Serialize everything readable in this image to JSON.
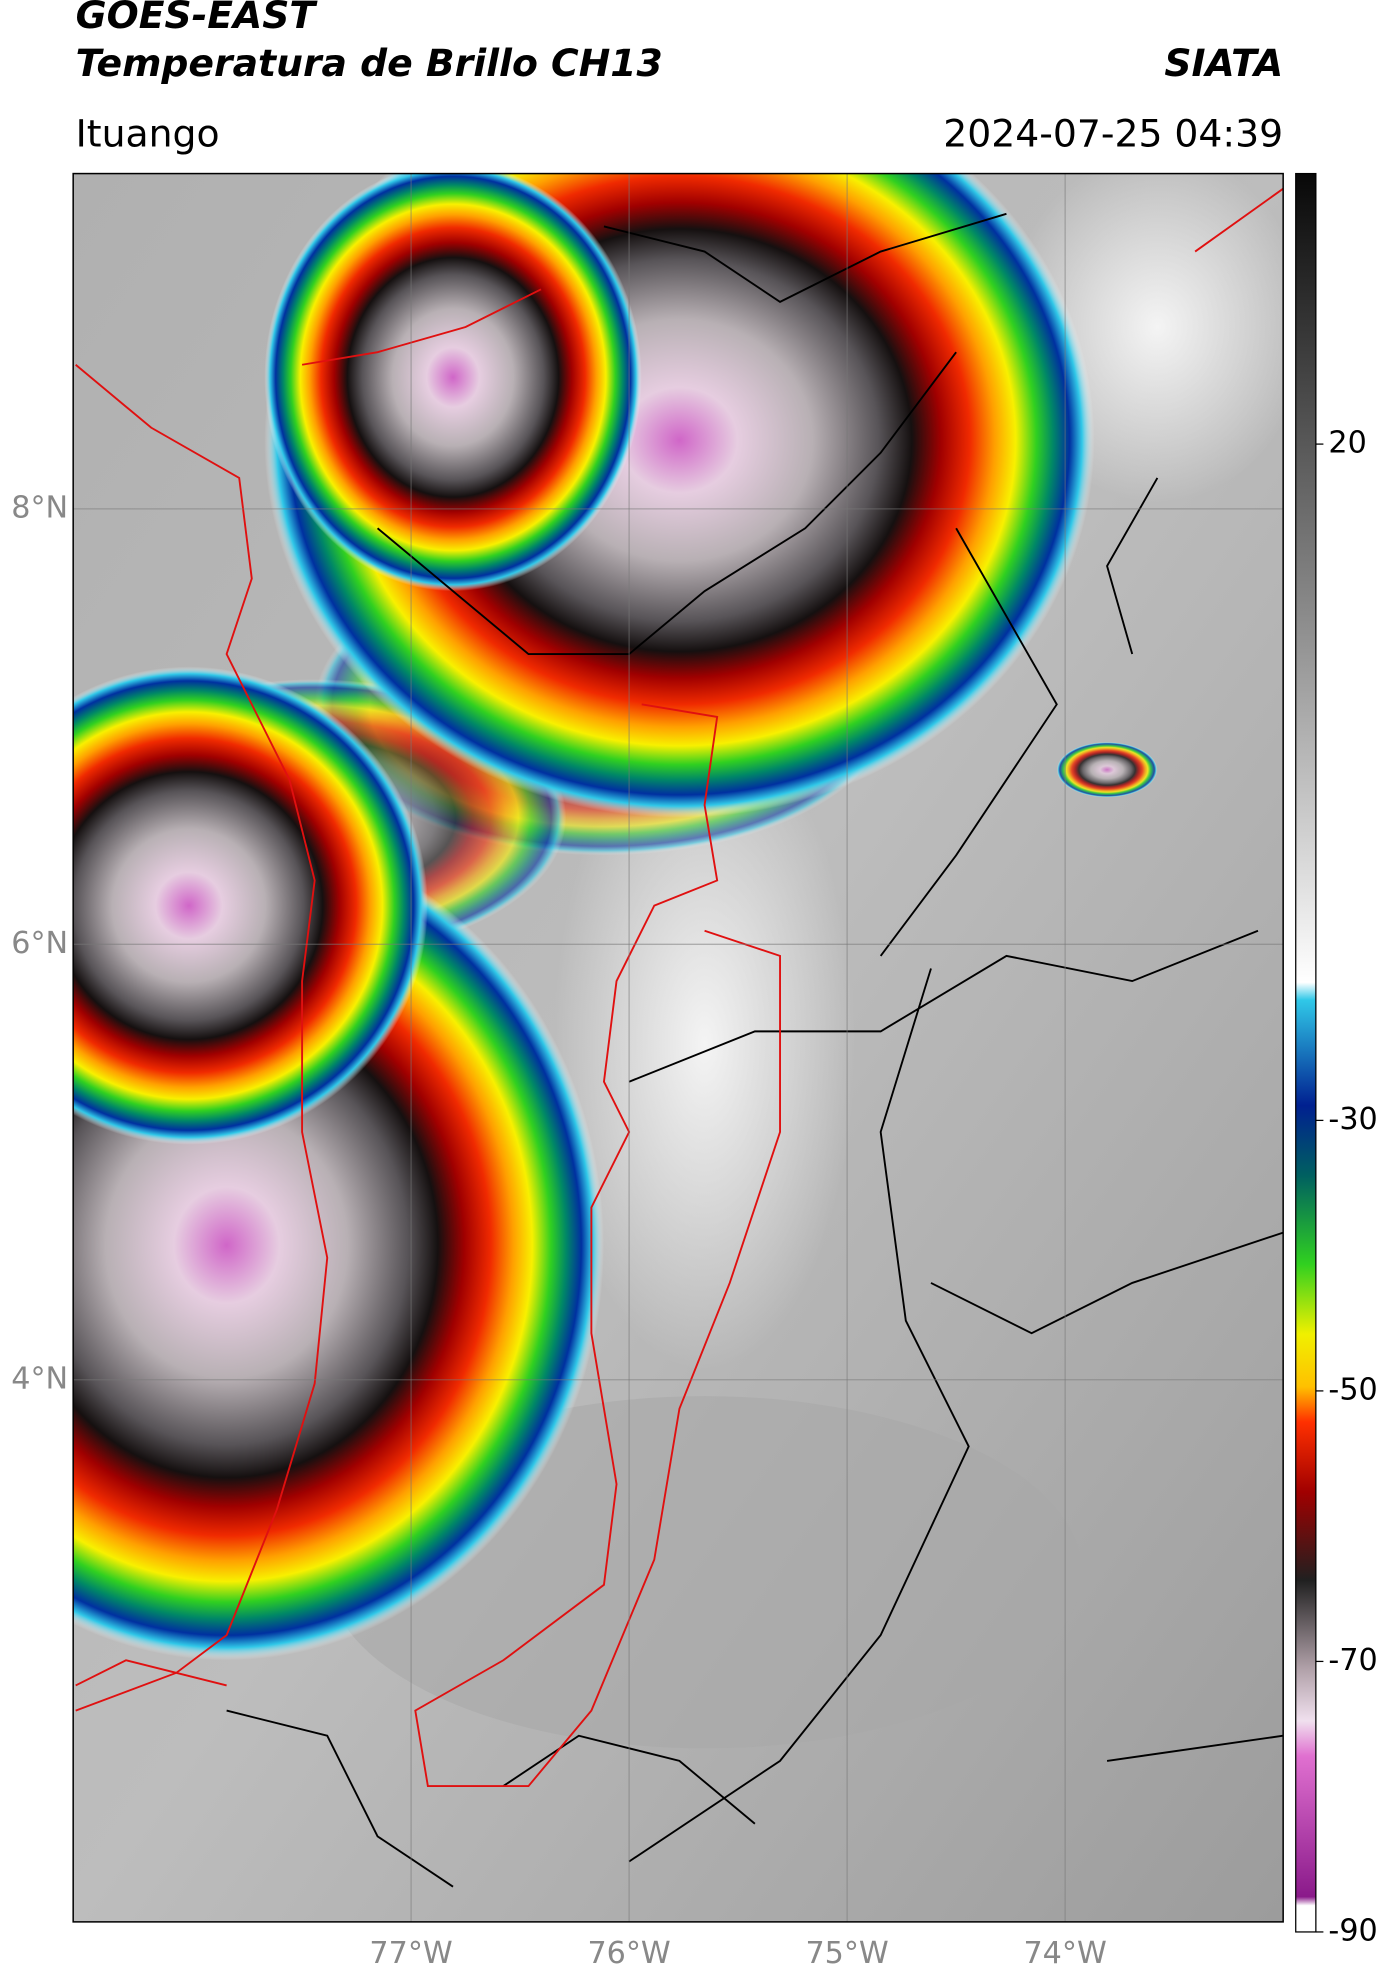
{
  "header": {
    "title": "GOES-EAST",
    "subtitle": "Temperatura de Brillo CH13",
    "source": "SIATA",
    "location": "Ituango",
    "datetime": "2024-07-25 04:39"
  },
  "map": {
    "xlim": [
      -78.55,
      -73.0
    ],
    "ylim": [
      1.51,
      9.54
    ],
    "xticks": [
      {
        "value": -77,
        "label": "77°W"
      },
      {
        "value": -76,
        "label": "76°W"
      },
      {
        "value": -75,
        "label": "75°W"
      },
      {
        "value": -74,
        "label": "74°W"
      }
    ],
    "yticks": [
      {
        "value": 8,
        "label": "8°N"
      },
      {
        "value": 6,
        "label": "6°N"
      },
      {
        "value": 4,
        "label": "4°N"
      }
    ]
  },
  "colorbar": {
    "lim": [
      -90,
      40
    ],
    "ticks": [
      20,
      -30,
      -50,
      -70,
      -90
    ]
  }
}
